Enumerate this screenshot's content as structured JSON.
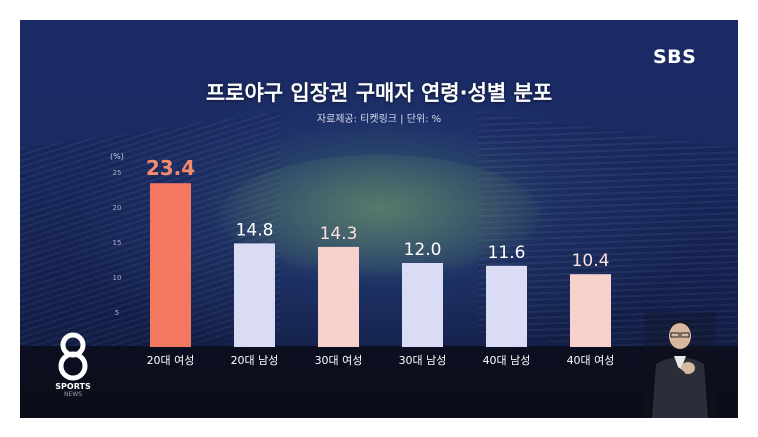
{
  "broadcaster": "SBS",
  "program": {
    "logo_text": "SPORTS",
    "logo_sub": "NEWS"
  },
  "chart_data": {
    "type": "bar",
    "title": "프로야구 입장권 구매자 연령·성별 분포",
    "subtitle": "자료제공: 티켓링크 | 단위: %",
    "unit_label": "(%)",
    "categories": [
      "20대 여성",
      "20대 남성",
      "30대 여성",
      "30대 남성",
      "40대 남성",
      "40대 여성"
    ],
    "values": [
      23.4,
      14.8,
      14.3,
      12.0,
      11.6,
      10.4
    ],
    "value_labels": [
      "23.4",
      "14.8",
      "14.3",
      "12.0",
      "11.6",
      "10.4"
    ],
    "ylim": [
      0,
      25
    ],
    "yticks": [
      0,
      5,
      10,
      15,
      20,
      25
    ],
    "grid": false,
    "colors": {
      "highlight_bar": "#f2785f",
      "highlight_label": "#f58a6c",
      "female_bar": "#f7d2cc",
      "male_bar": "#d9dcf4",
      "label": "#ffffff",
      "female_label": "#fbe2dc"
    },
    "bar_colors": [
      "#f2785f",
      "#d9dcf4",
      "#f7d2cc",
      "#d9dcf4",
      "#d9dcf4",
      "#f7d2cc"
    ],
    "label_colors": [
      "#f58a6c",
      "#ffffff",
      "#fbe2dc",
      "#ffffff",
      "#ffffff",
      "#fbe2dc"
    ]
  }
}
